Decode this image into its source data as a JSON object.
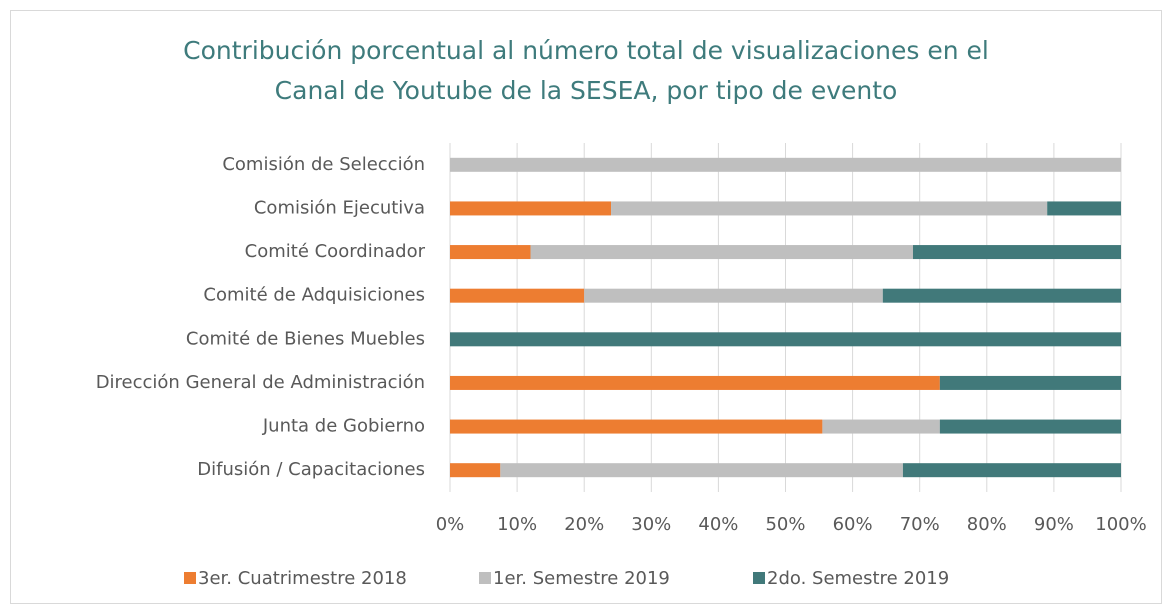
{
  "chart_data": {
    "type": "stacked_barh",
    "title": [
      "Contribución porcentual al número total de visualizaciones en el",
      "Canal de Youtube de la SESEA, por tipo de evento"
    ],
    "categories": [
      "Comisión de Selección",
      "Comisión Ejecutiva",
      "Comité Coordinador",
      "Comité de Adquisiciones",
      "Comité de Bienes Muebles",
      "Dirección General de Administración",
      "Junta de Gobierno",
      "Difusión / Capacitaciones"
    ],
    "series": [
      {
        "name": "3er. Cuatrimestre 2018",
        "color": "#ED7D31",
        "values": [
          0,
          24,
          12,
          20,
          0,
          73,
          55.5,
          7.5
        ]
      },
      {
        "name": "1er. Semestre 2019",
        "color": "#BFBFBF",
        "values": [
          100,
          65,
          57,
          44.5,
          0,
          0,
          17.5,
          60
        ]
      },
      {
        "name": "2do. Semestre 2019",
        "color": "#41797A",
        "values": [
          0,
          11,
          31,
          35.5,
          100,
          27,
          27,
          32.5
        ]
      }
    ],
    "xlim": [
      0,
      100
    ],
    "xticks": [
      {
        "value": 0,
        "label": "0%"
      },
      {
        "value": 10,
        "label": "10%"
      },
      {
        "value": 20,
        "label": "20%"
      },
      {
        "value": 30,
        "label": "30%"
      },
      {
        "value": 40,
        "label": "40%"
      },
      {
        "value": 50,
        "label": "50%"
      },
      {
        "value": 60,
        "label": "60%"
      },
      {
        "value": 70,
        "label": "70%"
      },
      {
        "value": 80,
        "label": "80%"
      },
      {
        "value": 90,
        "label": "90%"
      },
      {
        "value": 100,
        "label": "100%"
      }
    ],
    "grid": true,
    "legend": "bottom"
  }
}
